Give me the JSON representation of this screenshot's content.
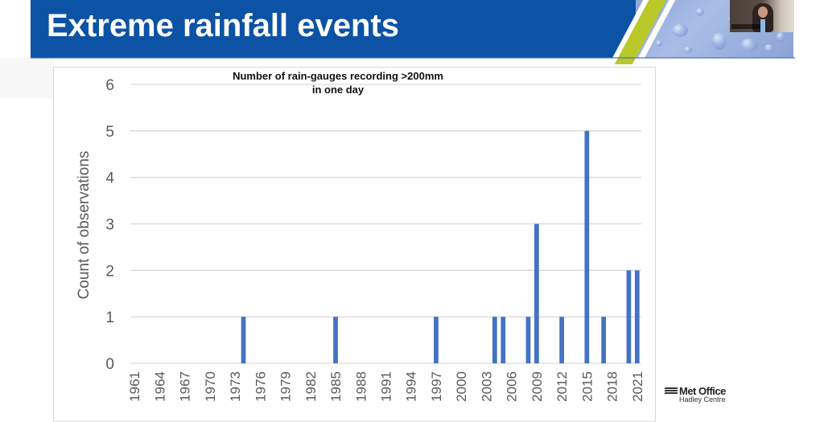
{
  "slide": {
    "title": "Extreme rainfall events",
    "brand_color": "#0c52a5",
    "accent_color": "#b9c92a",
    "logo": {
      "main": "Met Office",
      "sub": "Hadley Centre"
    }
  },
  "chart_data": {
    "type": "bar",
    "title": "Number of rain-gauges recording >200mm in one day",
    "title_lines": [
      "Number of rain-gauges recording >200mm",
      "in one day"
    ],
    "xlabel": "",
    "ylabel": "Count of observations",
    "ylim": [
      0,
      6
    ],
    "yticks": [
      0,
      1,
      2,
      3,
      4,
      5,
      6
    ],
    "xrange": [
      1961,
      2021
    ],
    "xticks": [
      1961,
      1964,
      1967,
      1970,
      1973,
      1976,
      1979,
      1982,
      1985,
      1988,
      1991,
      1994,
      1997,
      2000,
      2003,
      2006,
      2009,
      2012,
      2015,
      2018,
      2021
    ],
    "grid": true,
    "legend": "none",
    "bar_color": "#4472c4",
    "x": [
      1974,
      1985,
      1997,
      2004,
      2005,
      2008,
      2009,
      2012,
      2015,
      2017,
      2020,
      2021
    ],
    "values": [
      1,
      1,
      1,
      1,
      1,
      1,
      3,
      1,
      5,
      1,
      2,
      2
    ]
  }
}
